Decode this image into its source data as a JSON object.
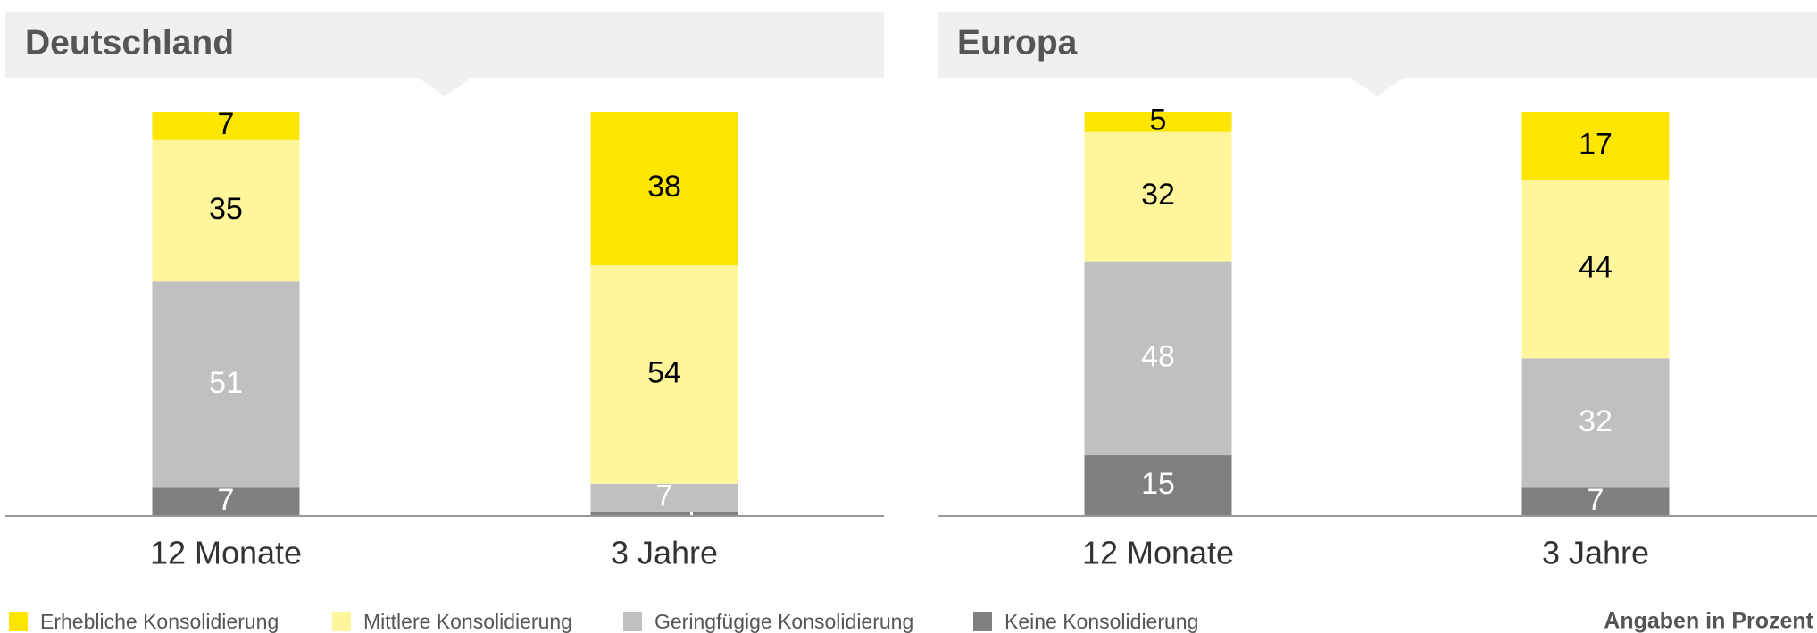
{
  "chart_data": [
    {
      "type": "bar",
      "stacked": true,
      "title": "Deutschland",
      "categories": [
        "12 Monate",
        "3 Jahre"
      ],
      "ylim": [
        0,
        100
      ],
      "series": [
        {
          "name": "Erhebliche Konsolidierung",
          "color": "#ffe600",
          "values": [
            7,
            38
          ]
        },
        {
          "name": "Mittlere Konsolidierung",
          "color": "#fff59a",
          "values": [
            35,
            54
          ]
        },
        {
          "name": "Geringfügige Konsolidierung",
          "color": "#c0c0c0",
          "values": [
            51,
            7
          ]
        },
        {
          "name": "Keine Konsolidierung",
          "color": "#808080",
          "values": [
            7,
            1
          ]
        }
      ]
    },
    {
      "type": "bar",
      "stacked": true,
      "title": "Europa",
      "categories": [
        "12 Monate",
        "3 Jahre"
      ],
      "ylim": [
        0,
        100
      ],
      "series": [
        {
          "values": [
            5,
            17
          ]
        },
        {
          "values": [
            32,
            44
          ]
        },
        {
          "values": [
            48,
            32
          ]
        },
        {
          "values": [
            15,
            7
          ]
        }
      ]
    }
  ],
  "note": "Angaben in Prozent"
}
